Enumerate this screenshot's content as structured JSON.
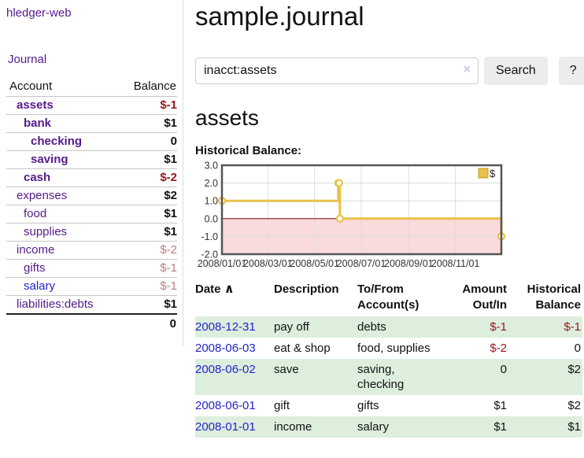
{
  "sidebar": {
    "app_title": "hledger-web",
    "nav": {
      "journal_label": "Journal"
    },
    "accounts_table": {
      "headers": {
        "account": "Account",
        "balance": "Balance"
      },
      "rows": [
        {
          "name": "assets",
          "indent": 1,
          "bold": true,
          "link_color": "purple",
          "balance": "$-1",
          "balance_color": "red"
        },
        {
          "name": "bank",
          "indent": 2,
          "bold": true,
          "link_color": "purple",
          "balance": "$1",
          "balance_color": "black"
        },
        {
          "name": "checking",
          "indent": 3,
          "bold": true,
          "link_color": "purple",
          "balance": "0",
          "balance_color": "black"
        },
        {
          "name": "saving",
          "indent": 3,
          "bold": true,
          "link_color": "purple",
          "balance": "$1",
          "balance_color": "black"
        },
        {
          "name": "cash",
          "indent": 2,
          "bold": true,
          "link_color": "purple",
          "balance": "$-2",
          "balance_color": "red"
        },
        {
          "name": "expenses",
          "indent": 1,
          "bold": false,
          "link_color": "purple",
          "balance": "$2",
          "balance_color": "black"
        },
        {
          "name": "food",
          "indent": 2,
          "bold": false,
          "link_color": "purple",
          "balance": "$1",
          "balance_color": "black"
        },
        {
          "name": "supplies",
          "indent": 2,
          "bold": false,
          "link_color": "purple",
          "balance": "$1",
          "balance_color": "black"
        },
        {
          "name": "income",
          "indent": 1,
          "bold": false,
          "link_color": "purple",
          "balance": "$-2",
          "balance_color": "rose"
        },
        {
          "name": "gifts",
          "indent": 2,
          "bold": false,
          "link_color": "purple",
          "balance": "$-1",
          "balance_color": "rose"
        },
        {
          "name": "salary",
          "indent": 2,
          "bold": false,
          "link_color": "blue",
          "balance": "$-1",
          "balance_color": "rose"
        },
        {
          "name": "liabilities:debts",
          "indent": 1,
          "bold": false,
          "link_color": "purple",
          "balance": "$1",
          "balance_color": "black"
        }
      ],
      "total": "0"
    }
  },
  "header": {
    "title": "sample.journal"
  },
  "search": {
    "query": "inacct:assets",
    "clear_icon": "×",
    "button_label": "Search",
    "help_label": "?"
  },
  "account_page": {
    "heading": "assets",
    "chart_label": "Historical Balance:"
  },
  "chart_data": {
    "type": "line",
    "step": true,
    "title": "Historical Balance",
    "series": [
      {
        "name": "$",
        "points": [
          [
            "2008-01-01",
            1
          ],
          [
            "2008-06-01",
            2
          ],
          [
            "2008-06-02",
            2
          ],
          [
            "2008-06-03",
            0
          ],
          [
            "2008-12-31",
            -1
          ]
        ]
      }
    ],
    "xlim": [
      "2008-01-01",
      "2008-12-31"
    ],
    "ylim": [
      -2,
      3
    ],
    "x_ticks": [
      {
        "date": "2008-01-01",
        "label": "2008/01/01"
      },
      {
        "date": "2008-03-01",
        "label": "2008/03/01"
      },
      {
        "date": "2008-05-01",
        "label": "2008/05/01"
      },
      {
        "date": "2008-07-01",
        "label": "2008/07/01"
      },
      {
        "date": "2008-09-01",
        "label": "2008/09/01"
      },
      {
        "date": "2008-11-01",
        "label": "2008/11/01"
      }
    ],
    "y_ticks": [
      {
        "value": 3,
        "label": "3.0"
      },
      {
        "value": 2,
        "label": "2.0"
      },
      {
        "value": 1,
        "label": "1.0"
      },
      {
        "value": 0,
        "label": "0.0"
      },
      {
        "value": -1,
        "label": "-1.0"
      },
      {
        "value": -2,
        "label": "-2.0"
      }
    ],
    "legend": {
      "label": "$",
      "position": "top-right"
    },
    "grid": true,
    "colors": {
      "line": "#e7c24a",
      "marker_fill": "#ffffff",
      "negative_fill": "#fadbdb",
      "zero_line": "#8b1a1a",
      "grid": "#dddddd",
      "border": "#555555"
    }
  },
  "register": {
    "headers": {
      "date": "Date",
      "sort_icon": "∧",
      "description": "Description",
      "tofrom": "To/From\nAccount(s)",
      "amount": "Amount\nOut/In",
      "balance": "Historical\nBalance"
    },
    "rows": [
      {
        "date": "2008-12-31",
        "description": "pay off",
        "accounts": "debts",
        "amount": "$-1",
        "amount_negative": true,
        "balance": "$-1",
        "balance_negative": true
      },
      {
        "date": "2008-06-03",
        "description": "eat & shop",
        "accounts": "food, supplies",
        "amount": "$-2",
        "amount_negative": true,
        "balance": "0",
        "balance_negative": false
      },
      {
        "date": "2008-06-02",
        "description": "save",
        "accounts": "saving, checking",
        "amount": "0",
        "amount_negative": false,
        "balance": "$2",
        "balance_negative": false
      },
      {
        "date": "2008-06-01",
        "description": "gift",
        "accounts": "gifts",
        "amount": "$1",
        "amount_negative": false,
        "balance": "$2",
        "balance_negative": false
      },
      {
        "date": "2008-01-01",
        "description": "income",
        "accounts": "salary",
        "amount": "$1",
        "amount_negative": false,
        "balance": "$1",
        "balance_negative": false
      }
    ]
  },
  "colors": {
    "link_purple": "#551a8b",
    "link_blue": "#2323cc",
    "negative_red": "#9b1717",
    "muted_rose": "#c17e7e",
    "row_stripe_green": "#ddeedd"
  }
}
